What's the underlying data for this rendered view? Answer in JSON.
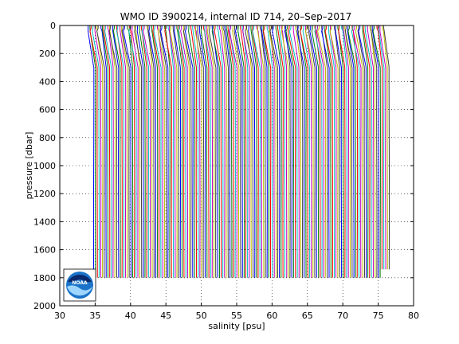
{
  "chart_data": {
    "type": "line",
    "title": "WMO ID 3900214, internal ID 714, 20–Sep–2017",
    "xlabel": "salinity [psu]",
    "ylabel": "pressure [dbar]",
    "xlim": [
      30,
      80
    ],
    "ylim": [
      0,
      2000
    ],
    "y_reversed": true,
    "grid": "dotted",
    "x_ticks": [
      "30",
      "35",
      "40",
      "45",
      "50",
      "55",
      "60",
      "65",
      "70",
      "75",
      "80"
    ],
    "y_ticks": [
      "0",
      "200",
      "400",
      "600",
      "800",
      "1000",
      "1200",
      "1400",
      "1600",
      "1800",
      "2000"
    ],
    "profile_layout": {
      "description_of_series": "Waterfall of consecutive salinity profiles, each offset by about 0.25 psu",
      "first_offset_salinity": 34.0,
      "offset_step": 0.25,
      "profile_count": 168,
      "surface_salinity": 34.0,
      "deep_salinity": 34.8,
      "max_pressure": 1800
    },
    "series_colors": [
      "#0000ff",
      "#008000",
      "#ff0000",
      "#00bfbf",
      "#bf00bf",
      "#bfbf00",
      "#404040"
    ]
  },
  "logo": {
    "name": "NOAA logo",
    "text": "NOAA"
  }
}
